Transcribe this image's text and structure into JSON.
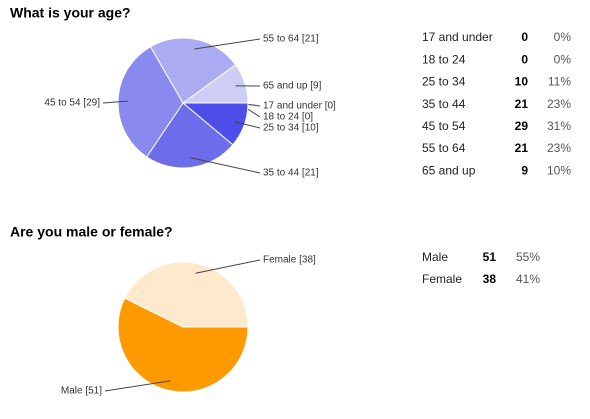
{
  "chart_data": [
    {
      "type": "pie",
      "title": "What is your age?",
      "categories": [
        "17 and under",
        "18 to 24",
        "25 to 34",
        "35 to 44",
        "45 to 54",
        "55 to 64",
        "65 and up"
      ],
      "values": [
        0,
        0,
        10,
        21,
        29,
        21,
        9
      ],
      "value_labels": [
        "17 and under [0]",
        "18 to 24 [0]",
        "25 to 34 [10]",
        "35 to 44 [21]",
        "45 to 54 [29]",
        "55 to 64 [21]",
        "65 and up [9]"
      ],
      "percent_labels": [
        "0%",
        "0%",
        "11%",
        "23%",
        "31%",
        "23%",
        "10%"
      ],
      "colors": [
        "#2a2ae0",
        "#3a3ae6",
        "#4d4dea",
        "#6d6deb",
        "#8a8aee",
        "#ababf3",
        "#cdcdf6"
      ]
    },
    {
      "type": "pie",
      "title": "Are you male or female?",
      "categories": [
        "Male",
        "Female"
      ],
      "values": [
        51,
        38
      ],
      "value_labels": [
        "Male [51]",
        "Female [38]"
      ],
      "percent_labels": [
        "55%",
        "41%"
      ],
      "colors": [
        "#ff9900",
        "#ffe9cc"
      ]
    }
  ]
}
